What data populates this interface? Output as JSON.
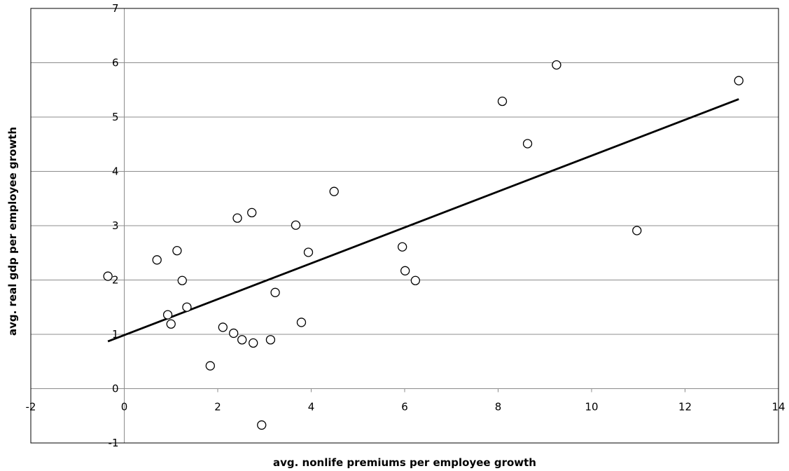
{
  "chart_data": {
    "type": "scatter",
    "title": "",
    "xlabel": "avg. nonlife premiums per employee growth",
    "ylabel": "avg. real gdp per employee growth",
    "xlim": [
      -2,
      14
    ],
    "ylim": [
      -1,
      7
    ],
    "xticks": [
      -2,
      0,
      2,
      4,
      6,
      8,
      10,
      12,
      14
    ],
    "yticks": [
      -1,
      0,
      1,
      2,
      3,
      4,
      5,
      6,
      7
    ],
    "grid": "horizontal",
    "legend": "none",
    "marker_color": "#000000",
    "points": [
      {
        "x": -0.35,
        "y": 2.07
      },
      {
        "x": 0.7,
        "y": 2.37
      },
      {
        "x": 0.93,
        "y": 1.36
      },
      {
        "x": 1.0,
        "y": 1.19
      },
      {
        "x": 1.13,
        "y": 2.54
      },
      {
        "x": 1.24,
        "y": 1.99
      },
      {
        "x": 1.34,
        "y": 1.5
      },
      {
        "x": 1.84,
        "y": 0.42
      },
      {
        "x": 2.11,
        "y": 1.13
      },
      {
        "x": 2.34,
        "y": 1.02
      },
      {
        "x": 2.42,
        "y": 3.14
      },
      {
        "x": 2.52,
        "y": 0.9
      },
      {
        "x": 2.73,
        "y": 3.24
      },
      {
        "x": 2.76,
        "y": 0.84
      },
      {
        "x": 2.94,
        "y": -0.67
      },
      {
        "x": 3.13,
        "y": 0.9
      },
      {
        "x": 3.23,
        "y": 1.77
      },
      {
        "x": 3.67,
        "y": 3.01
      },
      {
        "x": 3.79,
        "y": 1.22
      },
      {
        "x": 3.94,
        "y": 2.51
      },
      {
        "x": 4.49,
        "y": 3.63
      },
      {
        "x": 5.95,
        "y": 2.61
      },
      {
        "x": 6.01,
        "y": 2.17
      },
      {
        "x": 6.23,
        "y": 1.99
      },
      {
        "x": 8.09,
        "y": 5.29
      },
      {
        "x": 8.63,
        "y": 4.51
      },
      {
        "x": 9.25,
        "y": 5.96
      },
      {
        "x": 10.97,
        "y": 2.91
      },
      {
        "x": 13.15,
        "y": 5.67
      }
    ],
    "trendline": {
      "x": [
        -0.35,
        13.15
      ],
      "y": [
        0.87,
        5.33
      ]
    }
  }
}
